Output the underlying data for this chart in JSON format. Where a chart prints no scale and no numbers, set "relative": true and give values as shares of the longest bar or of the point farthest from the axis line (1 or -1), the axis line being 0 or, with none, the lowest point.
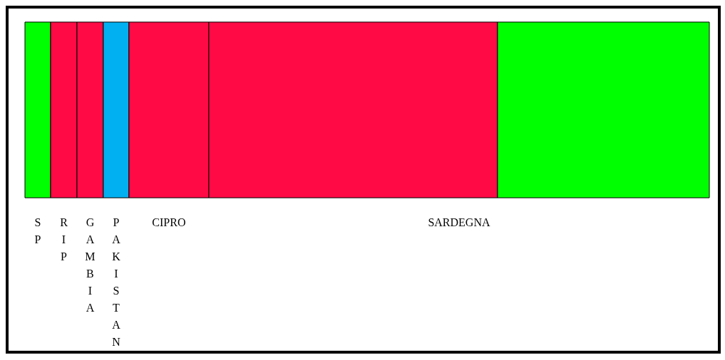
{
  "chart_data": {
    "type": "bar",
    "relative": true,
    "stacked": true,
    "orientation": "horizontal",
    "categories": [
      null
    ],
    "series": [
      {
        "name": "SP",
        "color": "#00ff00",
        "values": [
          0.0375
        ]
      },
      {
        "name": "RIP",
        "color": "#ff0a45",
        "values": [
          0.0385
        ]
      },
      {
        "name": "GAMBIA",
        "color": "#ff0a45",
        "values": [
          0.0385
        ]
      },
      {
        "name": "PAKISTAN",
        "color": "#00b0f0",
        "values": [
          0.0375
        ]
      },
      {
        "name": "CIPRO",
        "color": "#ff0a45",
        "values": [
          0.1167
        ]
      },
      {
        "color": "#ff0a45",
        "values": [
          0.4219
        ]
      },
      {
        "name": "SARDEGNA",
        "color": "#00ff00",
        "values": [
          0.3094
        ]
      }
    ]
  }
}
